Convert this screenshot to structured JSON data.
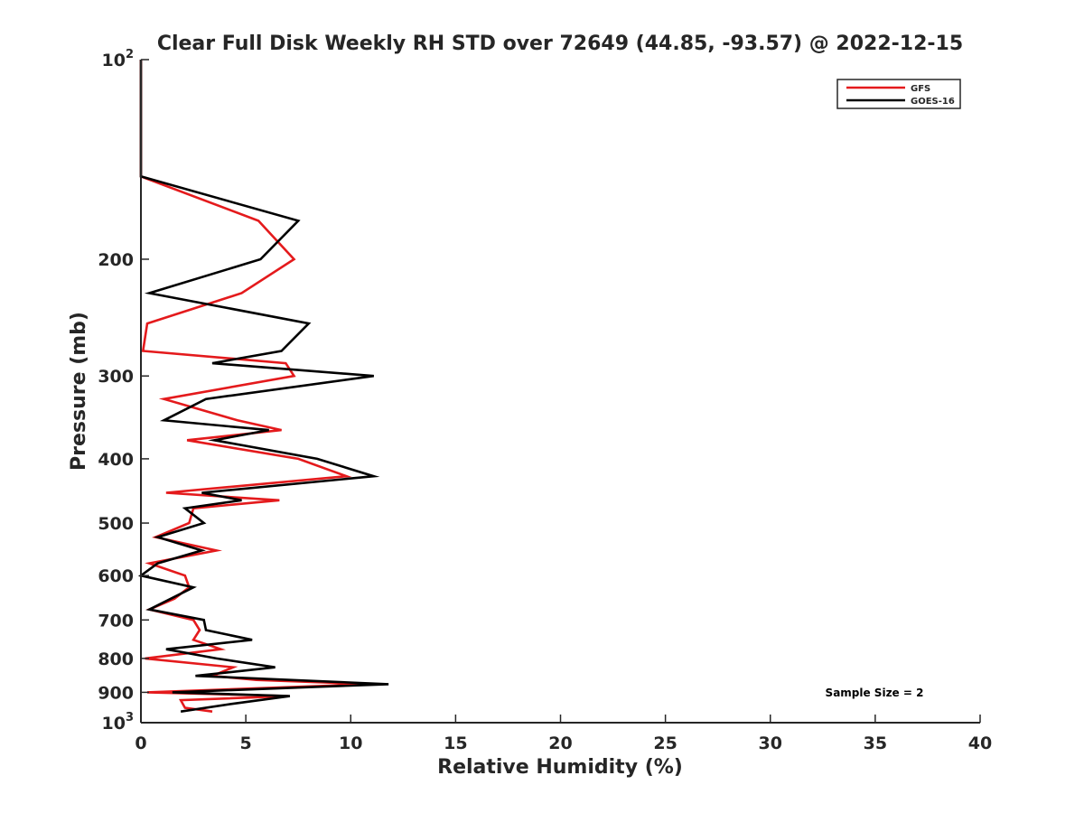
{
  "chart_data": {
    "type": "line",
    "title": "Clear Full Disk Weekly RH STD over 72649 (44.85, -93.57) @ 2022-12-15",
    "xlabel": "Relative Humidity (%)",
    "ylabel": "Pressure (mb)",
    "xlim": [
      0,
      40
    ],
    "ylim": [
      100,
      1000
    ],
    "y_scale": "log",
    "y_reversed": true,
    "grid": false,
    "legend_position": "top-right",
    "x_ticks": [
      0,
      5,
      10,
      15,
      20,
      25,
      30,
      35,
      40
    ],
    "y_ticks": [
      100,
      200,
      300,
      400,
      500,
      600,
      700,
      800,
      900,
      1000
    ],
    "y_tick_labels": [
      {
        "base": "10",
        "exp": "2"
      },
      {
        "base": "200",
        "exp": ""
      },
      {
        "base": "300",
        "exp": ""
      },
      {
        "base": "400",
        "exp": ""
      },
      {
        "base": "500",
        "exp": ""
      },
      {
        "base": "600",
        "exp": ""
      },
      {
        "base": "700",
        "exp": ""
      },
      {
        "base": "800",
        "exp": ""
      },
      {
        "base": "900",
        "exp": ""
      },
      {
        "base": "10",
        "exp": "3"
      }
    ],
    "annotation": "Sample Size = 2",
    "series": [
      {
        "name": "GFS",
        "color": "#e41a1c",
        "points": [
          [
            0,
            100
          ],
          [
            0,
            150
          ],
          [
            5.6,
            175
          ],
          [
            7.3,
            200
          ],
          [
            4.8,
            225
          ],
          [
            0.3,
            250
          ],
          [
            0.1,
            275
          ],
          [
            6.9,
            287
          ],
          [
            7.3,
            300
          ],
          [
            1.1,
            325
          ],
          [
            4.6,
            350
          ],
          [
            6.7,
            362
          ],
          [
            2.2,
            375
          ],
          [
            7.5,
            400
          ],
          [
            9.8,
            425
          ],
          [
            1.2,
            450
          ],
          [
            6.6,
            462
          ],
          [
            2.5,
            475
          ],
          [
            2.3,
            500
          ],
          [
            0.7,
            525
          ],
          [
            3.6,
            550
          ],
          [
            0.4,
            575
          ],
          [
            2.1,
            600
          ],
          [
            2.3,
            625
          ],
          [
            1.6,
            650
          ],
          [
            0.4,
            675
          ],
          [
            2.5,
            700
          ],
          [
            2.8,
            725
          ],
          [
            2.5,
            750
          ],
          [
            3.8,
            775
          ],
          [
            0.2,
            800
          ],
          [
            4.4,
            825
          ],
          [
            3.4,
            850
          ],
          [
            5.5,
            862
          ],
          [
            11.0,
            875
          ],
          [
            0.3,
            900
          ],
          [
            7.0,
            912
          ],
          [
            1.9,
            925
          ],
          [
            2.1,
            950
          ],
          [
            3.4,
            962
          ]
        ]
      },
      {
        "name": "GOES-16",
        "color": "#000000",
        "points": [
          [
            0,
            100
          ],
          [
            0,
            150
          ],
          [
            7.5,
            175
          ],
          [
            5.7,
            200
          ],
          [
            0.4,
            225
          ],
          [
            8.0,
            250
          ],
          [
            6.7,
            275
          ],
          [
            3.4,
            287
          ],
          [
            11.1,
            300
          ],
          [
            3.1,
            325
          ],
          [
            1.1,
            350
          ],
          [
            6.1,
            362
          ],
          [
            3.5,
            375
          ],
          [
            8.4,
            400
          ],
          [
            11.1,
            425
          ],
          [
            2.9,
            450
          ],
          [
            4.8,
            462
          ],
          [
            2.1,
            475
          ],
          [
            3.0,
            500
          ],
          [
            0.8,
            525
          ],
          [
            2.9,
            550
          ],
          [
            0.8,
            575
          ],
          [
            0.0,
            600
          ],
          [
            2.5,
            625
          ],
          [
            0.4,
            675
          ],
          [
            3.0,
            700
          ],
          [
            3.1,
            725
          ],
          [
            5.3,
            750
          ],
          [
            1.2,
            775
          ],
          [
            3.6,
            800
          ],
          [
            6.4,
            825
          ],
          [
            2.6,
            850
          ],
          [
            11.8,
            875
          ],
          [
            1.5,
            900
          ],
          [
            7.1,
            912
          ],
          [
            4.3,
            937
          ],
          [
            1.9,
            962
          ]
        ]
      }
    ]
  }
}
